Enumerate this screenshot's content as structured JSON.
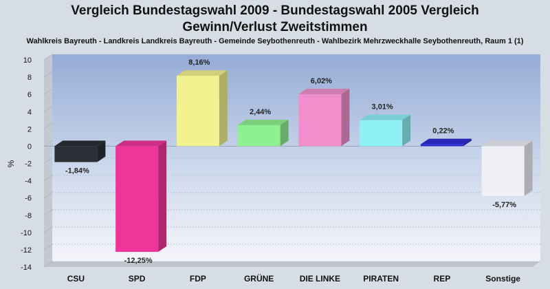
{
  "chart_data": {
    "type": "bar",
    "title_line1": "Vergleich Bundestagswahl 2009 - Bundestagswahl 2005 Vergleich",
    "title_line2": "Gewinn/Verlust Zweitstimmen",
    "subtitle": "Wahlkreis Bayreuth - Landkreis Landkreis Bayreuth - Gemeinde Seybothenreuth - Wahlbezirk Mehrzweckhalle Seybothenreuth, Raum 1 (1)",
    "ylabel": "%",
    "ylim": [
      -14,
      10
    ],
    "yticks": [
      10,
      8,
      6,
      4,
      2,
      0,
      -2,
      -4,
      -6,
      -8,
      -10,
      -12,
      -14
    ],
    "categories": [
      "CSU",
      "SPD",
      "FDP",
      "GRÜNE",
      "DIE LINKE",
      "PIRATEN",
      "REP",
      "Sonstige"
    ],
    "values": [
      -1.84,
      -12.25,
      8.16,
      2.44,
      6.02,
      3.01,
      0.22,
      -5.77
    ],
    "value_labels": [
      "-1,84%",
      "-12,25%",
      "8,16%",
      "2,44%",
      "6,02%",
      "3,01%",
      "0,22%",
      "-5,77%"
    ],
    "colors": [
      "#2b2f36",
      "#f0359a",
      "#f2f28e",
      "#8ff08f",
      "#f08fcc",
      "#8ff0f5",
      "#2d2dd6",
      "#eef0f6"
    ],
    "grid": true,
    "legend": "none"
  }
}
